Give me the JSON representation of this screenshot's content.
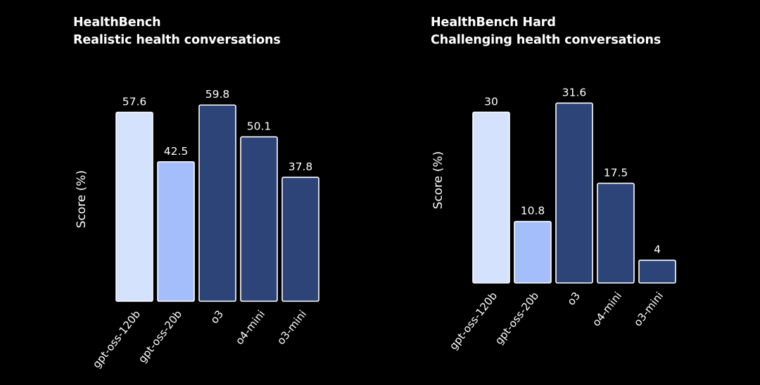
{
  "colors": {
    "background": "#000000",
    "text": "#ffffff",
    "bar_stroke": "#ffffff",
    "palette": [
      "#d5e2fe",
      "#a4befc",
      "#2c4478",
      "#2c4478",
      "#2c4478"
    ]
  },
  "chart_data": [
    {
      "type": "bar",
      "title": "HealthBench",
      "subtitle": "Realistic health conversations",
      "ylabel": "Score (%)",
      "xlabel": "",
      "categories": [
        "gpt-oss-120b",
        "gpt-oss-20b",
        "o3",
        "o4-mini",
        "o3-mini"
      ],
      "values": [
        57.6,
        42.5,
        59.8,
        50.1,
        37.8
      ],
      "labels": [
        "57.6",
        "42.5",
        "59.8",
        "50.1",
        "37.8"
      ],
      "ylim": [
        0,
        65
      ],
      "grid": false,
      "legend": "none"
    },
    {
      "type": "bar",
      "title": "HealthBench Hard",
      "subtitle": "Challenging health conversations",
      "ylabel": "Score (%)",
      "xlabel": "",
      "categories": [
        "gpt-oss-120b",
        "gpt-oss-20b",
        "o3",
        "o4-mini",
        "o3-mini"
      ],
      "values": [
        30,
        10.8,
        31.6,
        17.5,
        4
      ],
      "labels": [
        "30",
        "10.8",
        "31.6",
        "17.5",
        "4"
      ],
      "ylim": [
        0,
        34.5
      ],
      "grid": false,
      "legend": "none"
    }
  ]
}
